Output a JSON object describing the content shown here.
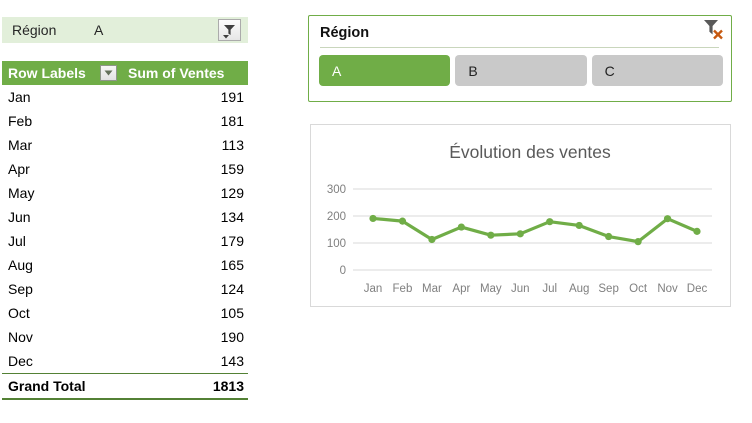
{
  "report_filter": {
    "field": "Région",
    "value": "A"
  },
  "pivot_table": {
    "columns": [
      "Row Labels",
      "Sum of Ventes"
    ],
    "rows": [
      {
        "label": "Jan",
        "value": "191"
      },
      {
        "label": "Feb",
        "value": "181"
      },
      {
        "label": "Mar",
        "value": "113"
      },
      {
        "label": "Apr",
        "value": "159"
      },
      {
        "label": "May",
        "value": "129"
      },
      {
        "label": "Jun",
        "value": "134"
      },
      {
        "label": "Jul",
        "value": "179"
      },
      {
        "label": "Aug",
        "value": "165"
      },
      {
        "label": "Sep",
        "value": "124"
      },
      {
        "label": "Oct",
        "value": "105"
      },
      {
        "label": "Nov",
        "value": "190"
      },
      {
        "label": "Dec",
        "value": "143"
      }
    ],
    "grand_total": {
      "label": "Grand Total",
      "value": "1813"
    }
  },
  "slicer": {
    "title": "Région",
    "clear_filter_icon": "funnel-with-red-x",
    "buttons": [
      {
        "label": "A",
        "selected": true
      },
      {
        "label": "B",
        "selected": false
      },
      {
        "label": "C",
        "selected": false
      }
    ]
  },
  "chart_data": {
    "type": "line",
    "title": "Évolution des ventes",
    "categories": [
      "Jan",
      "Feb",
      "Mar",
      "Apr",
      "May",
      "Jun",
      "Jul",
      "Aug",
      "Sep",
      "Oct",
      "Nov",
      "Dec"
    ],
    "series": [
      {
        "name": "Sum of Ventes",
        "values": [
          191,
          181,
          113,
          159,
          129,
          134,
          179,
          165,
          124,
          105,
          190,
          143
        ]
      }
    ],
    "xlabel": "",
    "ylabel": "",
    "ylim": [
      0,
      300
    ],
    "yticks": [
      0,
      100,
      200,
      300
    ],
    "grid": true,
    "legend_position": "none",
    "marker": "circle"
  },
  "colors": {
    "accent_green": "#70AD47",
    "total_border_green": "#538135",
    "filter_row_bg": "#E2EFDA",
    "slicer_unselected_gray": "#C9C9C9",
    "gridline_gray": "#D9D9D9",
    "chart_title_gray": "#595959",
    "axis_label_gray": "#7F7F7F",
    "clear_x_red": "#C65911"
  }
}
